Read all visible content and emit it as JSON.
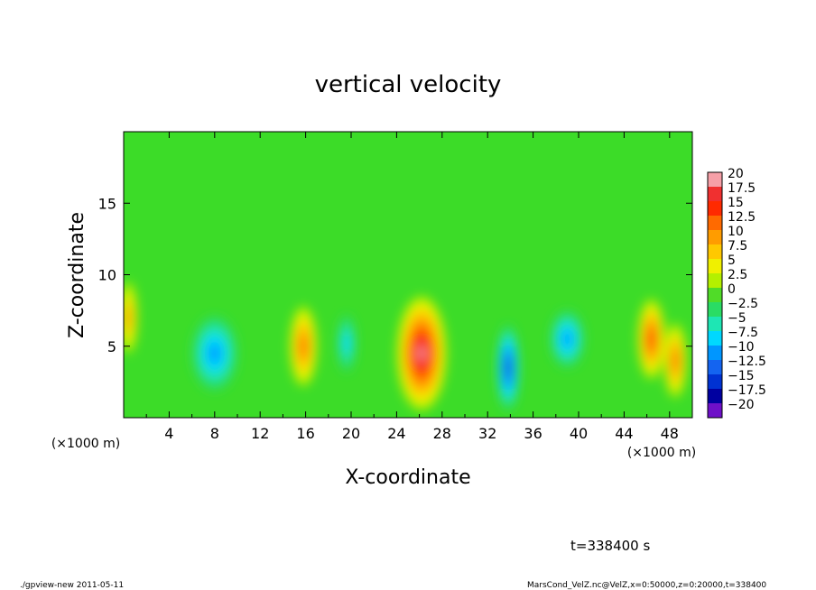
{
  "chart_data": {
    "type": "heatmap",
    "title": "vertical velocity",
    "xlabel": "X-coordinate",
    "ylabel": "Z-coordinate",
    "x_unit": "(×1000 m)",
    "y_unit": "(×1000 m)",
    "xlim": [
      0,
      50
    ],
    "ylim": [
      0,
      20
    ],
    "x_ticks": [
      4,
      8,
      12,
      16,
      20,
      24,
      28,
      32,
      36,
      40,
      44,
      48
    ],
    "y_ticks": [
      5,
      10,
      15
    ],
    "colorbar": {
      "levels": [
        "20",
        "17.5",
        "15",
        "12.5",
        "10",
        "7.5",
        "5",
        "2.5",
        "0",
        "−2.5",
        "−5",
        "−7.5",
        "−10",
        "−12.5",
        "−15",
        "−17.5",
        "−20"
      ],
      "colors": [
        "#f6a0a8",
        "#f03030",
        "#ff2a00",
        "#ff6a00",
        "#ff9c00",
        "#ffc800",
        "#f0f000",
        "#b4f000",
        "#50dc28",
        "#2adc64",
        "#1ee6b4",
        "#00d8ff",
        "#0096ff",
        "#1464f0",
        "#0032d2",
        "#0000a0",
        "#6e10c8"
      ]
    },
    "background_value": 0,
    "features": [
      {
        "x": 0.4,
        "z": 7.0,
        "value": 10,
        "rx": 0.8,
        "rz": 2.5
      },
      {
        "x": 8.0,
        "z": 4.5,
        "value": -9,
        "rx": 2.0,
        "rz": 2.6
      },
      {
        "x": 15.8,
        "z": 5.0,
        "value": 12,
        "rx": 1.2,
        "rz": 2.8
      },
      {
        "x": 19.6,
        "z": 5.2,
        "value": -5.5,
        "rx": 0.8,
        "rz": 2.0
      },
      {
        "x": 26.2,
        "z": 4.5,
        "value": 18,
        "rx": 2.2,
        "rz": 4.0
      },
      {
        "x": 33.8,
        "z": 3.5,
        "value": -14,
        "rx": 1.0,
        "rz": 3.0
      },
      {
        "x": 39.0,
        "z": 5.5,
        "value": -8,
        "rx": 1.5,
        "rz": 2.0
      },
      {
        "x": 46.4,
        "z": 5.5,
        "value": 13,
        "rx": 1.2,
        "rz": 2.8
      },
      {
        "x": 48.5,
        "z": 4.0,
        "value": 11,
        "rx": 1.0,
        "rz": 2.6
      }
    ]
  },
  "annotations": {
    "time": "t=338400 s",
    "footer_left": "./gpview-new   2011-05-11",
    "footer_right": "MarsCond_VelZ.nc@VelZ,x=0:50000,z=0:20000,t=338400"
  }
}
